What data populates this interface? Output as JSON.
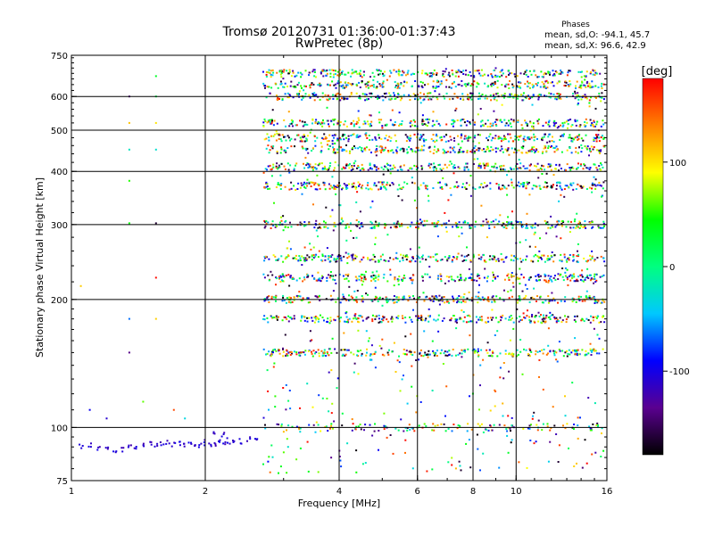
{
  "chart_data": {
    "type": "scatter",
    "title": "Tromsø 20120731 01:36:00-01:37:43",
    "subtitle": "RwPretec (8p)",
    "xlabel": "Frequency [MHz]",
    "ylabel": "Stationary phase Virtual Height [km]",
    "x_scale": "log",
    "y_scale": "log",
    "xlim": [
      1,
      16
    ],
    "ylim": [
      75,
      750
    ],
    "xticks": [
      1,
      2,
      4,
      6,
      8,
      10,
      16
    ],
    "xtick_labels": [
      "1",
      "2",
      "4",
      "6",
      "8",
      "10",
      "16"
    ],
    "yticks": [
      75,
      100,
      200,
      300,
      400,
      500,
      600,
      750
    ],
    "ytick_labels": [
      "75",
      "100",
      "200",
      "300",
      "400",
      "500",
      "600",
      "750"
    ],
    "grid_x": [
      2,
      4,
      6,
      8,
      10
    ],
    "grid_y": [
      100,
      200,
      300,
      400,
      500,
      600
    ],
    "phase_stats": {
      "title": "Phases",
      "line_o": "mean, sd,O: -94.1, 45.7",
      "line_x": "mean, sd,X:  96.6, 42.9"
    },
    "colorbar": {
      "label": "[deg]",
      "range": [
        -180,
        180
      ],
      "ticks": [
        100,
        0,
        -100
      ],
      "tick_labels": [
        "100",
        "0",
        "-100"
      ],
      "colormap": [
        "#000000",
        "#5a0090",
        "#0000ff",
        "#00c8ff",
        "#00ff80",
        "#00ff00",
        "#ffff00",
        "#ff8000",
        "#ff0000"
      ]
    },
    "series": [
      {
        "description": "E-region low echo trace",
        "points": [
          [
            1.05,
            90
          ],
          [
            1.1,
            91
          ],
          [
            1.15,
            89
          ],
          [
            1.2,
            90
          ],
          [
            1.25,
            88
          ],
          [
            1.3,
            89
          ],
          [
            1.35,
            91
          ],
          [
            1.4,
            90
          ],
          [
            1.45,
            91
          ],
          [
            1.5,
            92
          ],
          [
            1.55,
            90
          ],
          [
            1.6,
            91
          ],
          [
            1.65,
            92
          ],
          [
            1.7,
            91
          ],
          [
            1.75,
            92
          ],
          [
            1.8,
            91
          ],
          [
            1.85,
            92
          ],
          [
            1.9,
            92
          ],
          [
            1.95,
            91
          ],
          [
            2.0,
            92
          ],
          [
            2.05,
            91
          ],
          [
            2.1,
            92
          ],
          [
            2.15,
            93
          ],
          [
            2.2,
            92
          ],
          [
            2.25,
            93
          ],
          [
            2.3,
            92
          ],
          [
            2.4,
            93
          ],
          [
            2.5,
            94
          ],
          [
            2.6,
            93
          ],
          [
            2.1,
            98
          ],
          [
            2.2,
            96
          ]
        ],
        "phase_deg": -110
      }
    ],
    "scatter_bands_km": [
      100,
      150,
      180,
      200,
      225,
      250,
      300,
      370,
      410,
      450,
      480,
      520,
      600,
      640,
      680
    ],
    "scatter_freq_range_mhz": [
      2.7,
      15.8
    ]
  }
}
